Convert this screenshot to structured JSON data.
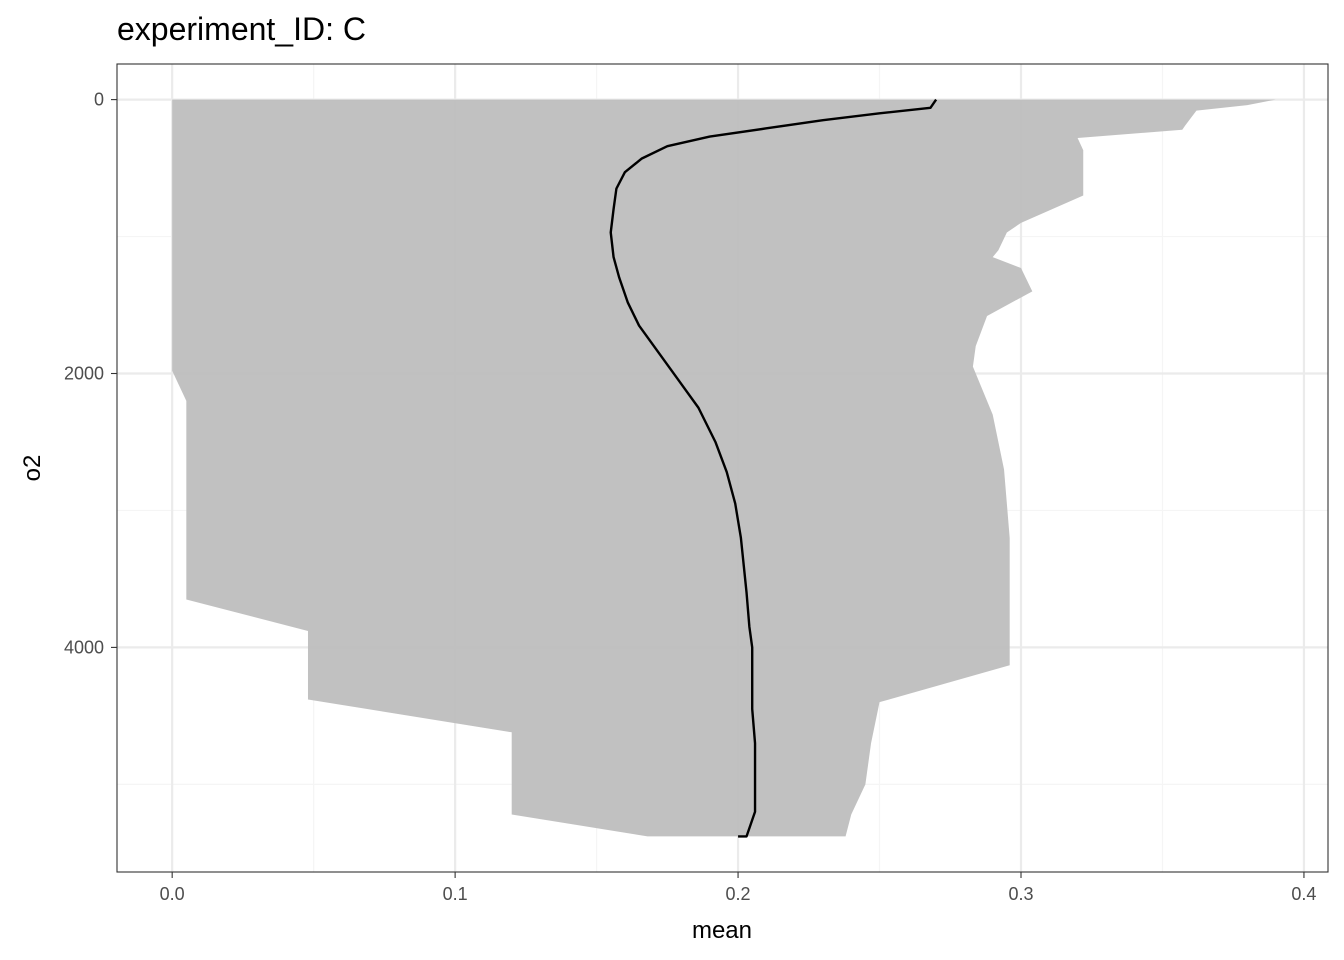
{
  "chart_data": {
    "type": "area",
    "title": "experiment_ID: C",
    "xlabel": "mean",
    "ylabel": "o2",
    "xlim": [
      -0.0195,
      0.4085
    ],
    "ylim": [
      -260,
      5640
    ],
    "y_reversed": true,
    "grid": true,
    "x_ticks": [
      0.0,
      0.1,
      0.2,
      0.3,
      0.4
    ],
    "x_tick_labels": [
      "0.0",
      "0.1",
      "0.2",
      "0.3",
      "0.4"
    ],
    "y_ticks": [
      0,
      2000,
      4000
    ],
    "y_tick_labels": [
      "0",
      "2000",
      "4000"
    ],
    "colors": {
      "ribbon": "#bebebe",
      "line": "#000000",
      "grid_major": "#ebebeb",
      "grid_minor": "#f5f5f5"
    },
    "series": [
      {
        "type": "line",
        "points": [
          [
            0.27,
            0
          ],
          [
            0.268,
            60
          ],
          [
            0.25,
            100
          ],
          [
            0.23,
            150
          ],
          [
            0.21,
            210
          ],
          [
            0.19,
            270
          ],
          [
            0.175,
            340
          ],
          [
            0.166,
            430
          ],
          [
            0.16,
            530
          ],
          [
            0.157,
            650
          ],
          [
            0.156,
            800
          ],
          [
            0.155,
            970
          ],
          [
            0.156,
            1150
          ],
          [
            0.158,
            1300
          ],
          [
            0.161,
            1480
          ],
          [
            0.165,
            1650
          ],
          [
            0.172,
            1850
          ],
          [
            0.179,
            2050
          ],
          [
            0.186,
            2250
          ],
          [
            0.192,
            2500
          ],
          [
            0.196,
            2720
          ],
          [
            0.199,
            2950
          ],
          [
            0.201,
            3200
          ],
          [
            0.202,
            3400
          ],
          [
            0.203,
            3600
          ],
          [
            0.204,
            3850
          ],
          [
            0.205,
            4000
          ],
          [
            0.205,
            4200
          ],
          [
            0.205,
            4450
          ],
          [
            0.206,
            4700
          ],
          [
            0.206,
            4950
          ],
          [
            0.206,
            5200
          ],
          [
            0.203,
            5380
          ],
          [
            0.2,
            5380
          ]
        ]
      },
      {
        "type": "ribbon",
        "upper": [
          [
            0.39,
            0
          ],
          [
            0.38,
            40
          ],
          [
            0.362,
            80
          ],
          [
            0.358,
            190
          ],
          [
            0.357,
            220
          ],
          [
            0.32,
            280
          ],
          [
            0.322,
            370
          ],
          [
            0.322,
            620
          ],
          [
            0.322,
            700
          ],
          [
            0.3,
            900
          ],
          [
            0.295,
            970
          ],
          [
            0.292,
            1100
          ],
          [
            0.29,
            1150
          ],
          [
            0.3,
            1230
          ],
          [
            0.304,
            1400
          ],
          [
            0.288,
            1580
          ],
          [
            0.284,
            1800
          ],
          [
            0.283,
            1950
          ],
          [
            0.29,
            2300
          ],
          [
            0.294,
            2700
          ],
          [
            0.296,
            3200
          ],
          [
            0.296,
            3600
          ],
          [
            0.296,
            3850
          ],
          [
            0.296,
            4130
          ],
          [
            0.25,
            4400
          ],
          [
            0.247,
            4700
          ],
          [
            0.245,
            5000
          ],
          [
            0.24,
            5220
          ],
          [
            0.238,
            5380
          ]
        ],
        "lower": [
          [
            0.0,
            0
          ],
          [
            0.0,
            1980
          ],
          [
            0.005,
            2200
          ],
          [
            0.005,
            2600
          ],
          [
            0.005,
            3000
          ],
          [
            0.005,
            3650
          ],
          [
            0.048,
            3880
          ],
          [
            0.048,
            4380
          ],
          [
            0.12,
            4620
          ],
          [
            0.12,
            5220
          ],
          [
            0.168,
            5380
          ]
        ]
      }
    ]
  }
}
